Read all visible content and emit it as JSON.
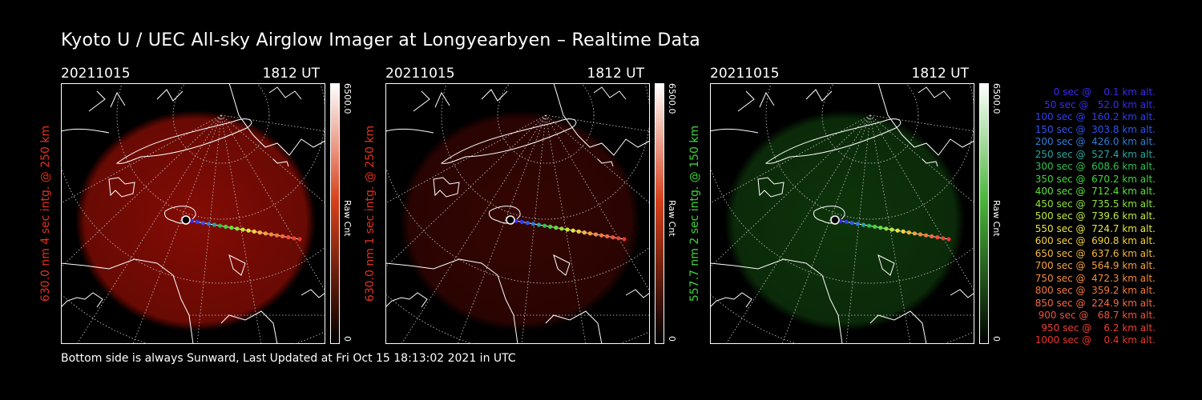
{
  "title": "Kyoto U / UEC All-sky Airglow Imager at Longyearbyen – Realtime Data",
  "panels": [
    {
      "date": "20211015",
      "time": "1812 UT",
      "side_label": "630.0 nm 4 sec intg. @ 250 km",
      "label_color": "#e0331d",
      "glow_color": "#9a0e05",
      "glow_opacity": 0.85,
      "cbar_top_color": "#ffffff",
      "cbar_mid_color": "#d6401b",
      "cbar_max": "6500.0",
      "cbar_unit": "Raw Cnt",
      "cbar_min": "0"
    },
    {
      "date": "20211015",
      "time": "1812 UT",
      "side_label": "630.0 nm 1 sec intg. @ 250 km",
      "label_color": "#e0331d",
      "glow_color": "#3a0603",
      "glow_opacity": 0.9,
      "cbar_top_color": "#ffffff",
      "cbar_mid_color": "#d6401b",
      "cbar_max": "6500.0",
      "cbar_unit": "Raw Cnt",
      "cbar_min": "0"
    },
    {
      "date": "20211015",
      "time": "1812 UT",
      "side_label": "557.7 nm 2 sec intg. @ 150 km",
      "label_color": "#3dd43a",
      "glow_color": "#0f3a0c",
      "glow_opacity": 0.9,
      "cbar_top_color": "#ffffff",
      "cbar_mid_color": "#49b53a",
      "cbar_max": "6500.0",
      "cbar_unit": "Raw Cnt",
      "cbar_min": "0"
    }
  ],
  "legend": [
    {
      "text": "   0 sec @    0.1 km alt.",
      "color": "#3a2bf0"
    },
    {
      "text": "  50 sec @   52.0 km alt.",
      "color": "#3a2bf0"
    },
    {
      "text": " 100 sec @  160.2 km alt.",
      "color": "#2f3ef0"
    },
    {
      "text": " 150 sec @  303.8 km alt.",
      "color": "#2f55f0"
    },
    {
      "text": " 200 sec @  426.0 km alt.",
      "color": "#2e7fd8"
    },
    {
      "text": " 250 sec @  527.4 km alt.",
      "color": "#2aa6a0"
    },
    {
      "text": " 300 sec @  608.6 km alt.",
      "color": "#2fc050"
    },
    {
      "text": " 350 sec @  670.2 km alt.",
      "color": "#3ed83a"
    },
    {
      "text": " 400 sec @  712.4 km alt.",
      "color": "#5ee03a"
    },
    {
      "text": " 450 sec @  735.5 km alt.",
      "color": "#8ee33a"
    },
    {
      "text": " 500 sec @  739.6 km alt.",
      "color": "#c0e83a"
    },
    {
      "text": " 550 sec @  724.7 km alt.",
      "color": "#e8e83a"
    },
    {
      "text": " 600 sec @  690.8 km alt.",
      "color": "#f5d23a"
    },
    {
      "text": " 650 sec @  637.6 km alt.",
      "color": "#f5b83a"
    },
    {
      "text": " 700 sec @  564.9 km alt.",
      "color": "#f5a23a"
    },
    {
      "text": " 750 sec @  472.3 km alt.",
      "color": "#f58a3a"
    },
    {
      "text": " 800 sec @  359.2 km alt.",
      "color": "#f57a3a"
    },
    {
      "text": " 850 sec @  224.9 km alt.",
      "color": "#f5683a"
    },
    {
      "text": " 900 sec @   68.7 km alt.",
      "color": "#f0503a"
    },
    {
      "text": " 950 sec @    6.2 km alt.",
      "color": "#ec4030"
    },
    {
      "text": "1000 sec @    0.4 km alt.",
      "color": "#e8352a"
    }
  ],
  "footer": "Bottom side is always Sunward, Last Updated at Fri Oct 15 18:13:02 2021 in UTC"
}
